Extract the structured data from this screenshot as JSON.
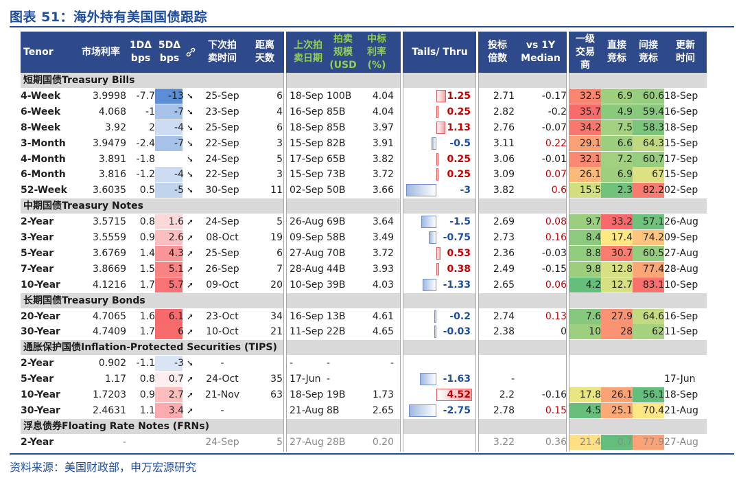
{
  "title": "图表 51：海外持有美国国债跟踪",
  "source": "资料来源：美国财政部，申万宏源研究",
  "headers": {
    "tenor": "Tenor",
    "rate": "市场利率",
    "bp1d": "1DΔ\nbps",
    "bp5d": "5DΔ\nbps",
    "next_auction": "下次拍\n卖时间",
    "days": "距离\n天数",
    "last_auction": "上次拍\n卖日期",
    "size": "拍卖\n规模\n(USD",
    "yield": "中标\n利率\n(%)",
    "tails": "Tails/ Thru",
    "btc": "投标\n倍数",
    "median": "vs 1Y\nMedian",
    "primary": "一级\n交易\n商",
    "direct": "直接\n竞标",
    "indirect": "间接\n竞标",
    "updated": "更新\n时间"
  },
  "colors": {
    "header_bg": "#2f4a8a",
    "accent": "#1f4e9a",
    "section_bg": "#d9d9d9"
  },
  "sections": [
    {
      "label": "短期国债Treasury Bills",
      "rows": [
        {
          "tenor": "4-Week",
          "rate": "3.9998",
          "d1": "-7.7",
          "d5": "-13",
          "d5v": -13,
          "arrow": "down",
          "next": "25-Sep",
          "days": "6",
          "last": "18-Sep",
          "size": "100B",
          "yld": "4.04",
          "tails": "1.25",
          "tv": 1.25,
          "btc": "2.71",
          "median": "-0.17",
          "primary": "32.5",
          "direct": "6.9",
          "indirect": "60.6",
          "updated": "18-Sep"
        },
        {
          "tenor": "6-Week",
          "rate": "4.068",
          "d1": "-1",
          "d5": "-7",
          "d5v": -7,
          "arrow": "down",
          "next": "23-Sep",
          "days": "4",
          "last": "16-Sep",
          "size": "85B",
          "yld": "4.04",
          "tails": "0.25",
          "tv": 0.25,
          "btc": "2.82",
          "median": "-0.2",
          "primary": "35.7",
          "direct": "4.9",
          "indirect": "59.4",
          "updated": "16-Sep"
        },
        {
          "tenor": "8-Week",
          "rate": "3.92",
          "d1": "2",
          "d5": "-4",
          "d5v": -4,
          "arrow": "down",
          "next": "25-Sep",
          "days": "6",
          "last": "18-Sep",
          "size": "85B",
          "yld": "3.97",
          "tails": "1.13",
          "tv": 1.13,
          "btc": "2.76",
          "median": "-0.07",
          "primary": "34.2",
          "direct": "7.5",
          "indirect": "58.3",
          "updated": "18-Sep"
        },
        {
          "tenor": "3-Month",
          "rate": "3.9479",
          "d1": "-2.4",
          "d5": "-7",
          "d5v": -7,
          "arrow": "down",
          "next": "22-Sep",
          "days": "3",
          "last": "15-Sep",
          "size": "82B",
          "yld": "3.91",
          "tails": "-0.5",
          "tv": -0.5,
          "btc": "3.11",
          "median": "0.22",
          "primary": "29.1",
          "direct": "6.6",
          "indirect": "64.3",
          "updated": "15-Sep"
        },
        {
          "tenor": "4-Month",
          "rate": "3.891",
          "d1": "-1.8",
          "d5": "",
          "d5v": 0,
          "arrow": "down",
          "next": "24-Sep",
          "days": "5",
          "last": "17-Sep",
          "size": "65B",
          "yld": "3.82",
          "tails": "0.25",
          "tv": 0.25,
          "btc": "3.06",
          "median": "-0.01",
          "primary": "32.1",
          "direct": "7.2",
          "indirect": "60.7",
          "updated": "17-Sep"
        },
        {
          "tenor": "6-Month",
          "rate": "3.816",
          "d1": "-1.2",
          "d5": "-4",
          "d5v": -4,
          "arrow": "down",
          "next": "22-Sep",
          "days": "3",
          "last": "15-Sep",
          "size": "73B",
          "yld": "3.72",
          "tails": "0.25",
          "tv": 0.25,
          "btc": "3.09",
          "median": "0.07",
          "primary": "26.1",
          "direct": "6.9",
          "indirect": "67",
          "updated": "15-Sep"
        },
        {
          "tenor": "52-Week",
          "rate": "3.6035",
          "d1": "0.5",
          "d5": "-5",
          "d5v": -5,
          "arrow": "down",
          "next": "30-Sep",
          "days": "11",
          "last": "02-Sep",
          "size": "50B",
          "yld": "3.66",
          "tails": "-3",
          "tv": -3,
          "btc": "3.82",
          "median": "0.6",
          "primary": "15.5",
          "direct": "2.3",
          "indirect": "82.2",
          "updated": "02-Sep"
        }
      ]
    },
    {
      "label": "中期国债Treasury Notes",
      "rows": [
        {
          "tenor": "2-Year",
          "rate": "3.5715",
          "d1": "0.8",
          "d5": "1.6",
          "d5v": 1.6,
          "arrow": "up",
          "next": "24-Sep",
          "days": "5",
          "last": "26-Aug",
          "size": "69B",
          "yld": "3.64",
          "tails": "-1.5",
          "tv": -1.5,
          "btc": "2.69",
          "median": "0.08",
          "primary": "9.7",
          "direct": "33.2",
          "indirect": "57.1",
          "updated": "26-Aug"
        },
        {
          "tenor": "3-Year",
          "rate": "3.5559",
          "d1": "0.9",
          "d5": "2.6",
          "d5v": 2.6,
          "arrow": "up",
          "next": "08-Oct",
          "days": "19",
          "last": "09-Sep",
          "size": "58B",
          "yld": "3.49",
          "tails": "-0.75",
          "tv": -0.75,
          "btc": "2.73",
          "median": "0.16",
          "primary": "8.4",
          "direct": "17.4",
          "indirect": "74.2",
          "updated": "09-Sep"
        },
        {
          "tenor": "5-Year",
          "rate": "3.6769",
          "d1": "1.4",
          "d5": "4.3",
          "d5v": 4.3,
          "arrow": "up",
          "next": "25-Sep",
          "days": "6",
          "last": "27-Aug",
          "size": "70B",
          "yld": "3.72",
          "tails": "0.53",
          "tv": 0.53,
          "btc": "2.36",
          "median": "-0.03",
          "primary": "8.8",
          "direct": "30.7",
          "indirect": "60.5",
          "updated": "27-Aug"
        },
        {
          "tenor": "7-Year",
          "rate": "3.8669",
          "d1": "1.5",
          "d5": "5.1",
          "d5v": 5.1,
          "arrow": "up",
          "next": "26-Sep",
          "days": "7",
          "last": "28-Aug",
          "size": "44B",
          "yld": "3.93",
          "tails": "0.38",
          "tv": 0.38,
          "btc": "2.49",
          "median": "-0.15",
          "primary": "9.8",
          "direct": "12.8",
          "indirect": "77.4",
          "updated": "28-Aug"
        },
        {
          "tenor": "10-Year",
          "rate": "4.1216",
          "d1": "1.7",
          "d5": "5.7",
          "d5v": 5.7,
          "arrow": "up",
          "next": "09-Oct",
          "days": "20",
          "last": "10-Sep",
          "size": "39B",
          "yld": "4.03",
          "tails": "-1.33",
          "tv": -1.33,
          "btc": "2.65",
          "median": "0.06",
          "primary": "4.2",
          "direct": "12.7",
          "indirect": "83.1",
          "updated": "10-Sep"
        }
      ]
    },
    {
      "label": "长期国债Treasury Bonds",
      "rows": [
        {
          "tenor": "20-Year",
          "rate": "4.7065",
          "d1": "1.6",
          "d5": "6.1",
          "d5v": 6.1,
          "arrow": "up",
          "next": "23-Oct",
          "days": "34",
          "last": "16-Sep",
          "size": "13B",
          "yld": "4.61",
          "tails": "-0.2",
          "tv": -0.2,
          "btc": "2.74",
          "median": "0.13",
          "primary": "7.6",
          "direct": "27.9",
          "indirect": "64.6",
          "updated": "16-Sep"
        },
        {
          "tenor": "30-Year",
          "rate": "4.7409",
          "d1": "1.7",
          "d5": "6",
          "d5v": 6,
          "arrow": "up",
          "next": "10-Oct",
          "days": "21",
          "last": "11-Sep",
          "size": "22B",
          "yld": "4.65",
          "tails": "-0.03",
          "tv": -0.03,
          "btc": "2.38",
          "median": "0",
          "primary": "10",
          "direct": "28",
          "indirect": "62",
          "updated": "11-Sep"
        }
      ]
    },
    {
      "label": "通胀保护国债Inflation-Protected Securities (TIPS)",
      "rows": [
        {
          "tenor": "2-Year",
          "rate": "0.902",
          "d1": "-1.1",
          "d5": "-3",
          "d5v": -3,
          "arrow": "down",
          "next": "-",
          "days": "",
          "last": "-",
          "size": "-",
          "yld": "-",
          "tails": "",
          "tv": null,
          "btc": "",
          "median": "",
          "primary": "",
          "direct": "",
          "indirect": "",
          "updated": ""
        },
        {
          "tenor": "5-Year",
          "rate": "1.17",
          "d1": "0.8",
          "d5": "0.7",
          "d5v": 0.7,
          "arrow": "up",
          "next": "24-Oct",
          "days": "35",
          "last": "17-Jun",
          "size": "-",
          "yld": "",
          "tails": "-1.63",
          "tv": -1.63,
          "btc": "-",
          "median": "",
          "primary": "",
          "direct": "",
          "indirect": "",
          "updated": "17-Jun"
        },
        {
          "tenor": "10-Year",
          "rate": "1.7203",
          "d1": "0.9",
          "d5": "2.7",
          "d5v": 2.7,
          "arrow": "up",
          "next": "21-Nov",
          "days": "63",
          "last": "18-Sep",
          "size": "19B",
          "yld": "1.73",
          "tails": "4.52",
          "tv": 4.52,
          "btc": "2.2",
          "median": "-0.16",
          "primary": "17.8",
          "direct": "26.1",
          "indirect": "56.1",
          "updated": "18-Sep"
        },
        {
          "tenor": "30-Year",
          "rate": "2.4631",
          "d1": "1.1",
          "d5": "3.4",
          "d5v": 3.4,
          "arrow": "up",
          "next": "-",
          "days": "",
          "last": "21-Aug",
          "size": "8B",
          "yld": "2.65",
          "tails": "-2.75",
          "tv": -2.75,
          "btc": "2.78",
          "median": "0.15",
          "primary": "4.5",
          "direct": "25.1",
          "indirect": "70.4",
          "updated": "21-Aug"
        }
      ]
    },
    {
      "label": "浮息债券Floating Rate Notes (FRNs)",
      "rows": [
        {
          "tenor": "2-Year",
          "rate": "-",
          "d1": "",
          "d5": "",
          "d5v": 0,
          "arrow": "",
          "next": "24-Sep",
          "days": "5",
          "last": "27-Aug",
          "size": "28B",
          "yld": "0.20",
          "tails": "",
          "tv": null,
          "btc": "3.22",
          "median": "0.36",
          "primary": "21.4",
          "direct": "0.7",
          "indirect": "77.9",
          "updated": "27-Aug",
          "muted": true
        }
      ]
    }
  ]
}
